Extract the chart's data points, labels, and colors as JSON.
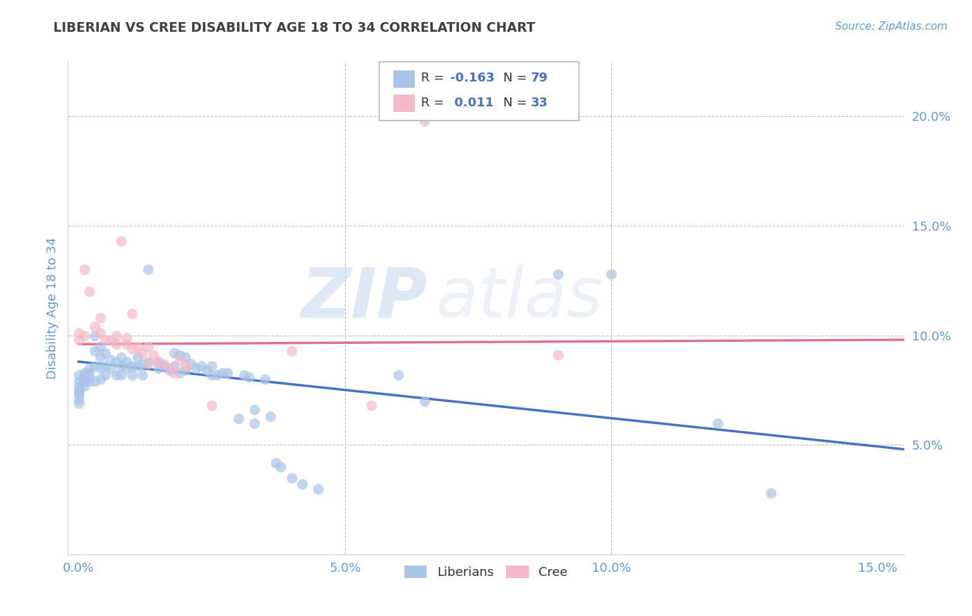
{
  "title": "LIBERIAN VS CREE DISABILITY AGE 18 TO 34 CORRELATION CHART",
  "source_text": "Source: ZipAtlas.com",
  "ylabel": "Disability Age 18 to 34",
  "xlim": [
    -0.002,
    0.155
  ],
  "ylim": [
    0.0,
    0.225
  ],
  "xticks": [
    0.0,
    0.05,
    0.1,
    0.15
  ],
  "xticklabels": [
    "0.0%",
    "5.0%",
    "10.0%",
    "15.0%"
  ],
  "yticks_right": [
    0.05,
    0.1,
    0.15,
    0.2
  ],
  "yticklabels_right": [
    "5.0%",
    "10.0%",
    "15.0%",
    "20.0%"
  ],
  "watermark_zip": "ZIP",
  "watermark_atlas": "atlas",
  "blue_color": "#a8c4e8",
  "pink_color": "#f4b8c8",
  "blue_line_color": "#4472c4",
  "pink_line_color": "#e07090",
  "title_color": "#404040",
  "axis_color": "#5b9bd5",
  "legend_text_color": "#333333",
  "blue_scatter": [
    [
      0.0,
      0.082
    ],
    [
      0.0,
      0.079
    ],
    [
      0.0,
      0.077
    ],
    [
      0.0,
      0.075
    ],
    [
      0.0,
      0.074
    ],
    [
      0.0,
      0.073
    ],
    [
      0.0,
      0.071
    ],
    [
      0.0,
      0.069
    ],
    [
      0.001,
      0.083
    ],
    [
      0.001,
      0.081
    ],
    [
      0.001,
      0.079
    ],
    [
      0.001,
      0.077
    ],
    [
      0.002,
      0.085
    ],
    [
      0.002,
      0.083
    ],
    [
      0.002,
      0.081
    ],
    [
      0.002,
      0.079
    ],
    [
      0.003,
      0.1
    ],
    [
      0.003,
      0.093
    ],
    [
      0.003,
      0.086
    ],
    [
      0.003,
      0.079
    ],
    [
      0.004,
      0.095
    ],
    [
      0.004,
      0.09
    ],
    [
      0.004,
      0.085
    ],
    [
      0.004,
      0.08
    ],
    [
      0.005,
      0.092
    ],
    [
      0.005,
      0.086
    ],
    [
      0.005,
      0.082
    ],
    [
      0.006,
      0.089
    ],
    [
      0.006,
      0.085
    ],
    [
      0.007,
      0.088
    ],
    [
      0.007,
      0.082
    ],
    [
      0.008,
      0.09
    ],
    [
      0.008,
      0.086
    ],
    [
      0.008,
      0.082
    ],
    [
      0.009,
      0.088
    ],
    [
      0.009,
      0.085
    ],
    [
      0.01,
      0.086
    ],
    [
      0.01,
      0.082
    ],
    [
      0.011,
      0.09
    ],
    [
      0.011,
      0.086
    ],
    [
      0.012,
      0.087
    ],
    [
      0.012,
      0.082
    ],
    [
      0.013,
      0.088
    ],
    [
      0.013,
      0.13
    ],
    [
      0.015,
      0.085
    ],
    [
      0.015,
      0.088
    ],
    [
      0.016,
      0.086
    ],
    [
      0.017,
      0.084
    ],
    [
      0.018,
      0.092
    ],
    [
      0.018,
      0.086
    ],
    [
      0.019,
      0.091
    ],
    [
      0.019,
      0.083
    ],
    [
      0.02,
      0.09
    ],
    [
      0.02,
      0.084
    ],
    [
      0.021,
      0.087
    ],
    [
      0.022,
      0.085
    ],
    [
      0.023,
      0.086
    ],
    [
      0.024,
      0.084
    ],
    [
      0.025,
      0.086
    ],
    [
      0.025,
      0.082
    ],
    [
      0.026,
      0.082
    ],
    [
      0.027,
      0.083
    ],
    [
      0.028,
      0.083
    ],
    [
      0.03,
      0.062
    ],
    [
      0.031,
      0.082
    ],
    [
      0.032,
      0.081
    ],
    [
      0.033,
      0.066
    ],
    [
      0.033,
      0.06
    ],
    [
      0.035,
      0.08
    ],
    [
      0.036,
      0.063
    ],
    [
      0.037,
      0.042
    ],
    [
      0.038,
      0.04
    ],
    [
      0.04,
      0.035
    ],
    [
      0.042,
      0.032
    ],
    [
      0.045,
      0.03
    ],
    [
      0.06,
      0.082
    ],
    [
      0.065,
      0.07
    ],
    [
      0.09,
      0.128
    ],
    [
      0.1,
      0.128
    ],
    [
      0.12,
      0.06
    ],
    [
      0.13,
      0.028
    ]
  ],
  "pink_scatter": [
    [
      0.0,
      0.101
    ],
    [
      0.0,
      0.098
    ],
    [
      0.001,
      0.13
    ],
    [
      0.001,
      0.1
    ],
    [
      0.002,
      0.12
    ],
    [
      0.003,
      0.104
    ],
    [
      0.004,
      0.108
    ],
    [
      0.004,
      0.101
    ],
    [
      0.005,
      0.098
    ],
    [
      0.006,
      0.098
    ],
    [
      0.007,
      0.096
    ],
    [
      0.007,
      0.1
    ],
    [
      0.008,
      0.143
    ],
    [
      0.009,
      0.099
    ],
    [
      0.009,
      0.096
    ],
    [
      0.01,
      0.11
    ],
    [
      0.01,
      0.094
    ],
    [
      0.011,
      0.095
    ],
    [
      0.012,
      0.092
    ],
    [
      0.013,
      0.095
    ],
    [
      0.013,
      0.087
    ],
    [
      0.014,
      0.091
    ],
    [
      0.015,
      0.088
    ],
    [
      0.016,
      0.087
    ],
    [
      0.017,
      0.085
    ],
    [
      0.018,
      0.083
    ],
    [
      0.019,
      0.089
    ],
    [
      0.02,
      0.086
    ],
    [
      0.025,
      0.068
    ],
    [
      0.04,
      0.093
    ],
    [
      0.055,
      0.068
    ],
    [
      0.065,
      0.198
    ],
    [
      0.09,
      0.091
    ]
  ],
  "blue_trend_x": [
    0.0,
    0.155
  ],
  "blue_trend_y": [
    0.088,
    0.048
  ],
  "pink_trend_x": [
    0.0,
    0.155
  ],
  "pink_trend_y": [
    0.096,
    0.098
  ]
}
